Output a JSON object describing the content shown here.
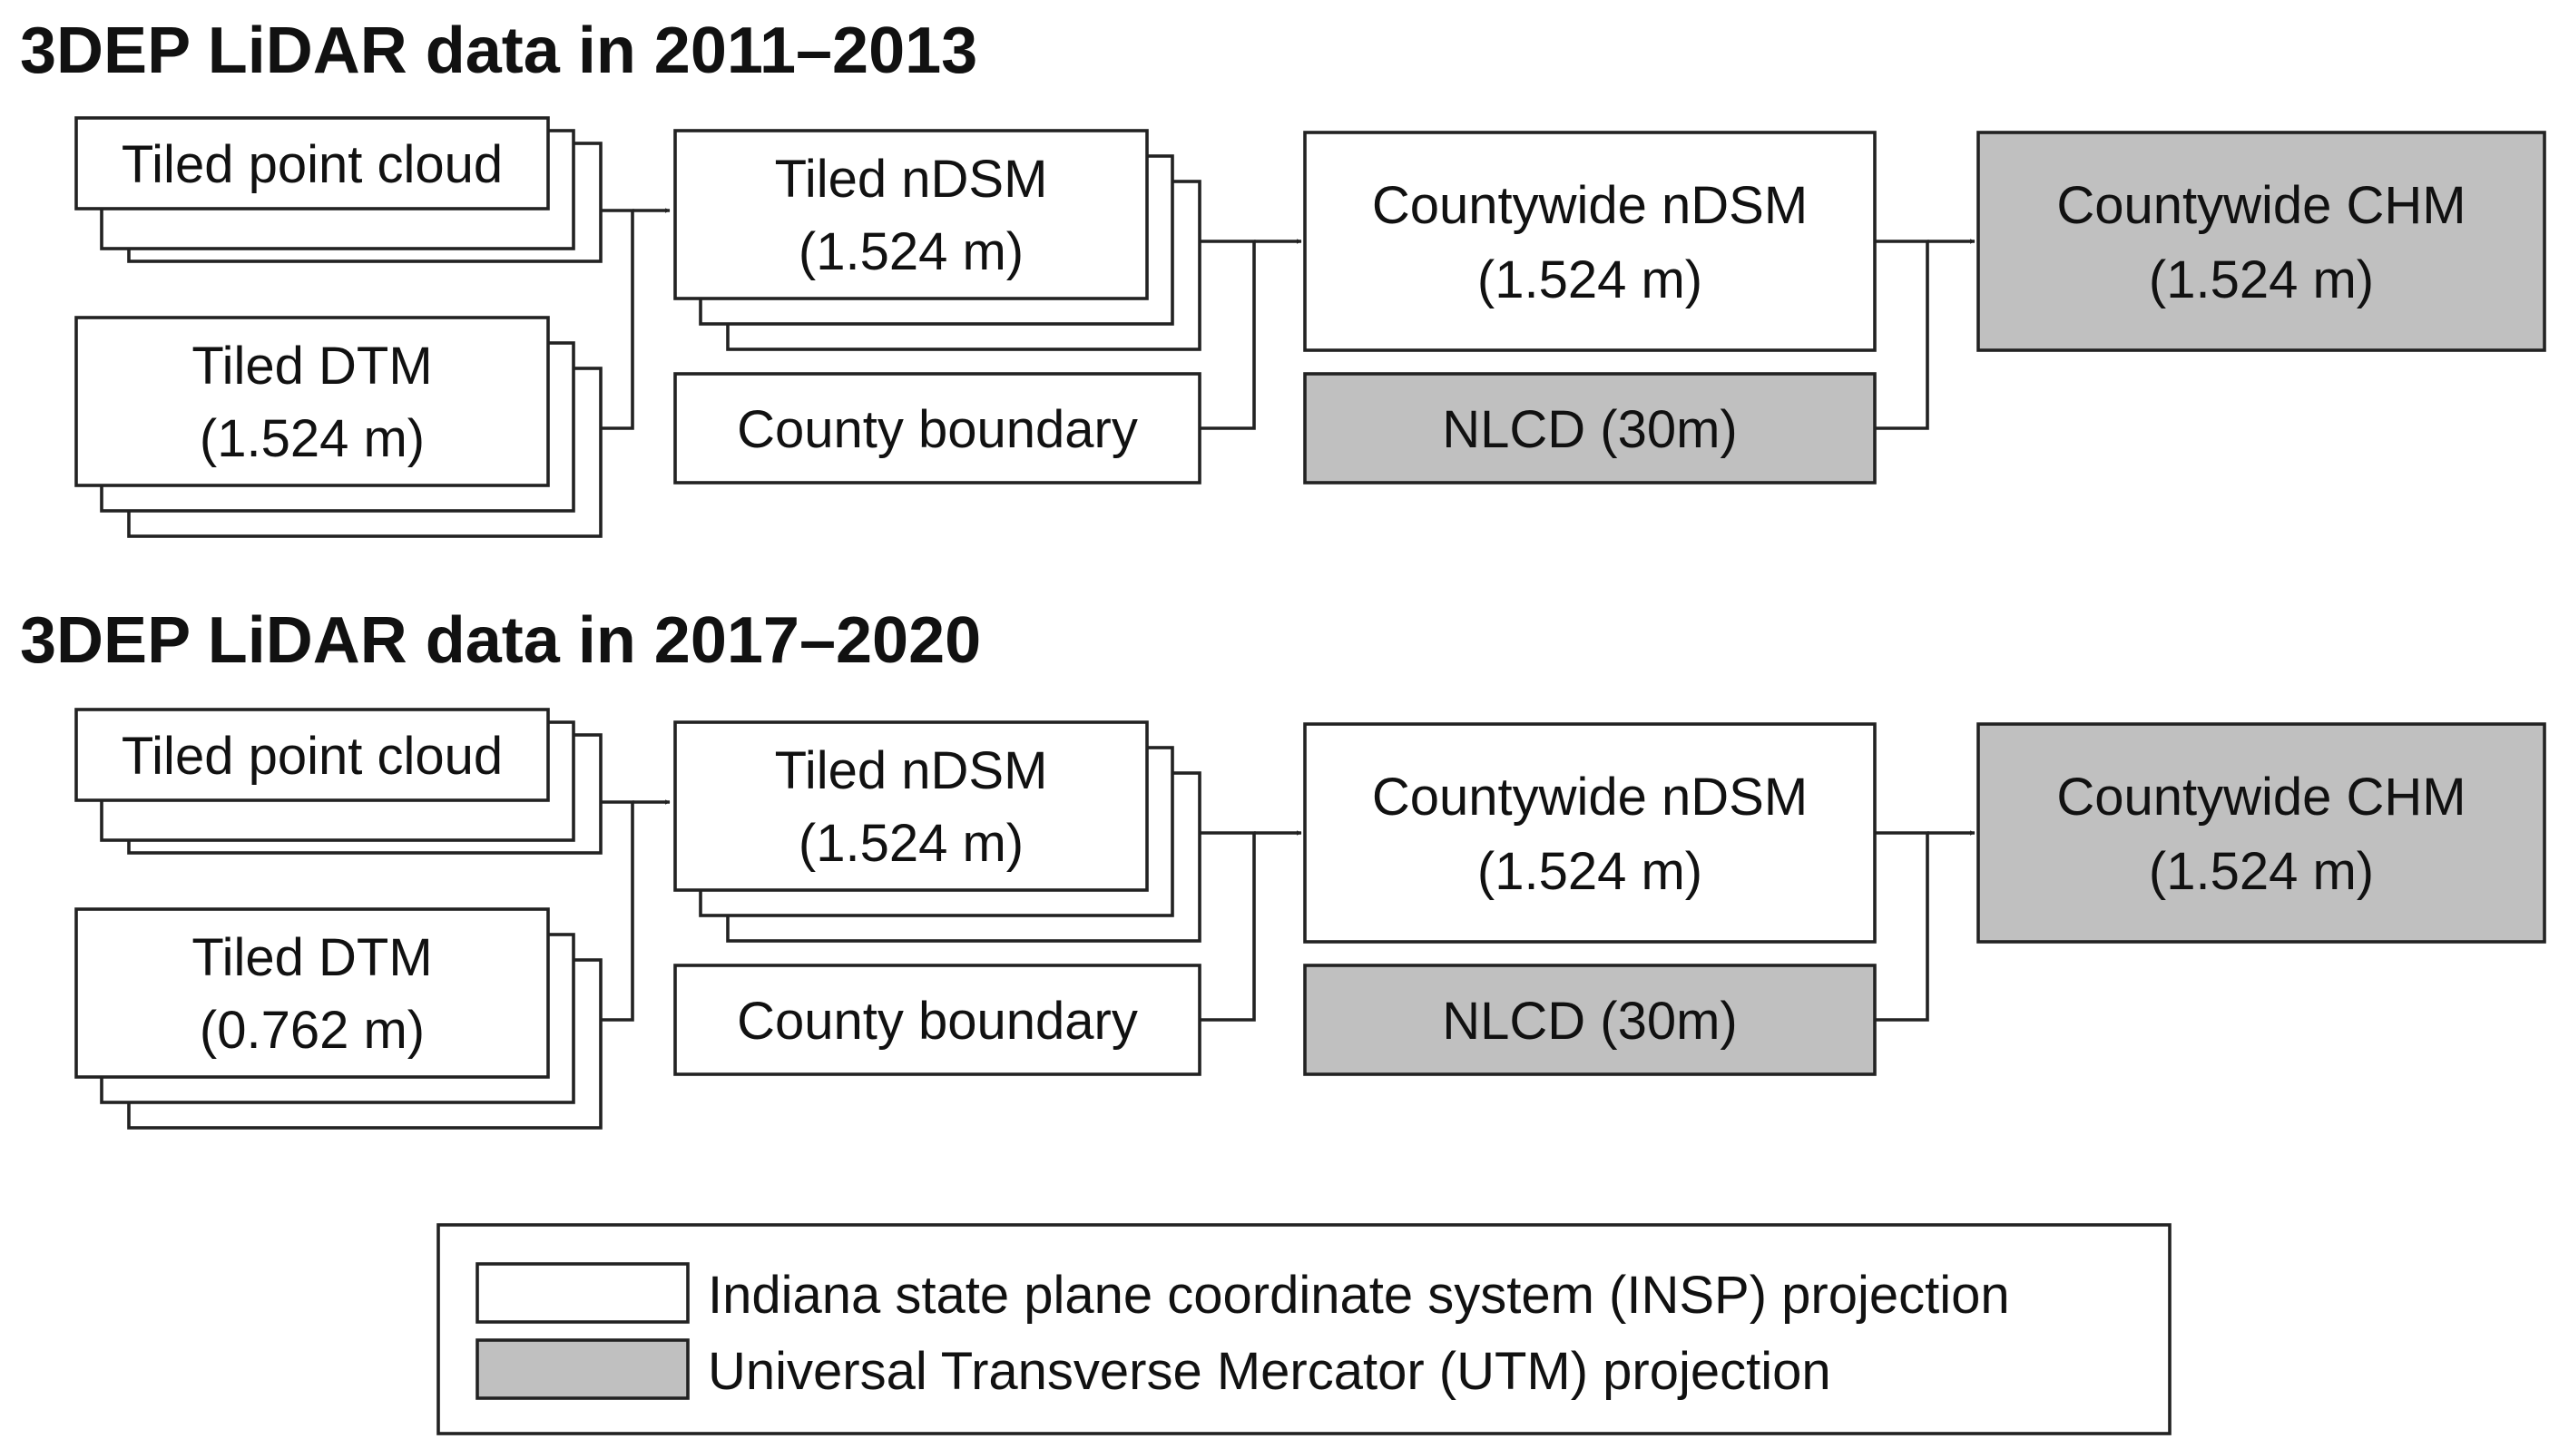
{
  "colors": {
    "insp": "#ffffff",
    "utm": "#c0c0c0",
    "line": "#222222"
  },
  "sections": [
    {
      "title": "3DEP LiDAR data in 2011–2013",
      "point_cloud": "Tiled point cloud",
      "dtm": [
        "Tiled DTM",
        "(1.524 m)"
      ],
      "ndsm_tiled": [
        "Tiled nDSM",
        "(1.524 m)"
      ],
      "county_boundary": "County boundary",
      "ndsm_countywide": [
        "Countywide nDSM",
        "(1.524 m)"
      ],
      "nlcd": "NLCD (30m)",
      "chm": [
        "Countywide CHM",
        "(1.524 m)"
      ]
    },
    {
      "title": "3DEP LiDAR data in 2017–2020",
      "point_cloud": "Tiled point cloud",
      "dtm": [
        "Tiled DTM",
        "(0.762 m)"
      ],
      "ndsm_tiled": [
        "Tiled nDSM",
        "(1.524 m)"
      ],
      "county_boundary": "County boundary",
      "ndsm_countywide": [
        "Countywide nDSM",
        "(1.524 m)"
      ],
      "nlcd": "NLCD (30m)",
      "chm": [
        "Countywide CHM",
        "(1.524 m)"
      ]
    }
  ],
  "legend": {
    "insp_label": "Indiana state plane coordinate system (INSP) projection",
    "utm_label": "Universal Transverse Mercator (UTM) projection"
  }
}
